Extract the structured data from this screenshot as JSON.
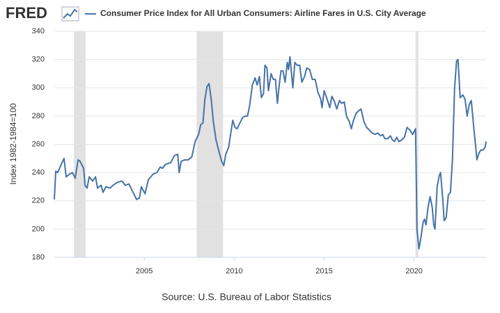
{
  "logo": "FRED",
  "chart_data": {
    "type": "line",
    "ylabel": "Index 1982-1984=100",
    "source": "Source: U.S. Bureau of Labor Statistics",
    "xlim": [
      2000,
      2024
    ],
    "xticks": [
      2005,
      2010,
      2015,
      2020
    ],
    "ylim": [
      180,
      340
    ],
    "yticks": [
      180,
      200,
      220,
      240,
      260,
      280,
      300,
      320,
      340
    ],
    "grid": true,
    "recessions": [
      [
        2001.09,
        2001.74
      ],
      [
        2007.91,
        2009.38
      ],
      [
        2020.08,
        2020.23
      ]
    ],
    "recession_color": "#e1e1e1",
    "x": [
      2000.0,
      2000.08,
      2000.19,
      2000.39,
      2000.54,
      2000.66,
      2000.85,
      2001.01,
      2001.16,
      2001.32,
      2001.43,
      2001.63,
      2001.71,
      2001.82,
      2001.94,
      2002.13,
      2002.29,
      2002.4,
      2002.6,
      2002.71,
      2002.87,
      2003.1,
      2003.26,
      2003.49,
      2003.76,
      2003.95,
      2004.15,
      2004.34,
      2004.57,
      2004.73,
      2004.84,
      2005.04,
      2005.23,
      2005.5,
      2005.7,
      2005.89,
      2006.01,
      2006.2,
      2006.47,
      2006.67,
      2006.86,
      2006.94,
      2007.05,
      2007.25,
      2007.44,
      2007.64,
      2007.83,
      2008.02,
      2008.14,
      2008.26,
      2008.37,
      2008.49,
      2008.6,
      2008.72,
      2008.84,
      2008.99,
      2009.15,
      2009.3,
      2009.42,
      2009.53,
      2009.69,
      2009.81,
      2009.92,
      2010.04,
      2010.16,
      2010.35,
      2010.47,
      2010.62,
      2010.74,
      2010.85,
      2011.01,
      2011.16,
      2011.28,
      2011.4,
      2011.51,
      2011.63,
      2011.71,
      2011.82,
      2011.9,
      2012.05,
      2012.17,
      2012.29,
      2012.4,
      2012.52,
      2012.6,
      2012.71,
      2012.83,
      2012.95,
      2013.02,
      2013.1,
      2013.26,
      2013.37,
      2013.49,
      2013.64,
      2013.76,
      2013.91,
      2014.03,
      2014.19,
      2014.34,
      2014.5,
      2014.65,
      2014.81,
      2014.88,
      2015.0,
      2015.19,
      2015.31,
      2015.43,
      2015.58,
      2015.7,
      2015.85,
      2015.97,
      2016.12,
      2016.24,
      2016.4,
      2016.51,
      2016.63,
      2016.78,
      2016.94,
      2017.05,
      2017.21,
      2017.36,
      2017.52,
      2017.67,
      2017.83,
      2017.98,
      2018.14,
      2018.26,
      2018.37,
      2018.53,
      2018.68,
      2018.8,
      2018.91,
      2019.03,
      2019.15,
      2019.3,
      2019.46,
      2019.61,
      2019.77,
      2019.92,
      2020.08,
      2020.16,
      2020.27,
      2020.39,
      2020.5,
      2020.58,
      2020.66,
      2020.78,
      2020.89,
      2021.01,
      2021.09,
      2021.16,
      2021.28,
      2021.4,
      2021.47,
      2021.59,
      2021.67,
      2021.78,
      2021.9,
      2022.02,
      2022.13,
      2022.25,
      2022.36,
      2022.44,
      2022.56,
      2022.71,
      2022.83,
      2022.95,
      2023.06,
      2023.18,
      2023.3,
      2023.41,
      2023.49,
      2023.61,
      2023.72,
      2023.84,
      2023.95,
      2024.0
    ],
    "series": [
      {
        "name": "Consumer Price Index for All Urban Consumers: Airline Fares in U.S. City Average",
        "color": "#4572a7",
        "values": [
          221,
          241,
          240,
          246,
          250,
          237,
          239,
          240,
          236,
          249,
          248,
          243,
          231,
          229,
          237,
          234,
          237,
          229,
          231,
          226,
          230,
          229,
          231,
          233,
          234,
          231,
          232,
          227,
          221,
          222,
          230,
          225,
          235,
          239,
          240,
          244,
          243,
          246,
          247,
          252,
          253,
          240,
          248,
          249,
          249,
          251,
          262,
          267,
          274,
          275,
          292,
          301,
          303,
          292,
          276,
          263,
          255,
          248,
          245,
          253,
          258,
          268,
          277,
          272,
          271,
          276,
          279,
          280,
          280,
          287,
          302,
          307,
          302,
          308,
          293,
          296,
          316,
          314,
          298,
          310,
          306,
          306,
          289,
          304,
          312,
          312,
          304,
          318,
          313,
          322,
          300,
          318,
          316,
          316,
          304,
          308,
          314,
          313,
          306,
          306,
          297,
          292,
          286,
          298,
          291,
          286,
          294,
          290,
          285,
          291,
          289,
          290,
          280,
          276,
          271,
          277,
          282,
          284,
          285,
          276,
          272,
          270,
          268,
          267,
          268,
          266,
          267,
          264,
          264,
          266,
          263,
          262,
          265,
          262,
          263,
          265,
          272,
          270,
          267,
          271,
          200,
          186,
          195,
          205,
          207,
          203,
          216,
          223,
          215,
          203,
          200,
          230,
          238,
          240,
          222,
          206,
          208,
          224,
          226,
          249,
          300,
          319,
          320,
          293,
          295,
          292,
          280,
          288,
          291,
          274,
          260,
          249,
          254,
          256,
          256,
          258,
          262
        ]
      }
    ]
  }
}
